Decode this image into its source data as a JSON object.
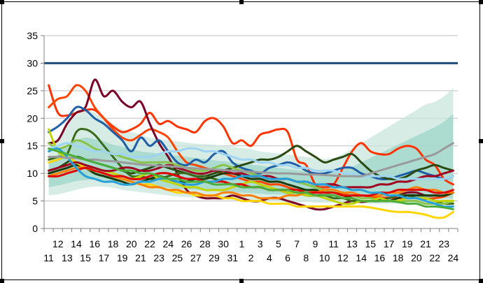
{
  "chart_data": {
    "type": "line",
    "title": "",
    "xlabel": "",
    "ylabel": "",
    "ylim": [
      0,
      35
    ],
    "yticks": [
      0,
      5,
      10,
      15,
      20,
      25,
      30,
      35
    ],
    "x_categories": [
      "11",
      "12",
      "13",
      "14",
      "15",
      "16",
      "17",
      "18",
      "19",
      "20",
      "21",
      "22",
      "23",
      "24",
      "25",
      "26",
      "27",
      "28",
      "29",
      "30",
      "31",
      "1",
      "2",
      "3",
      "4",
      "5",
      "6",
      "7",
      "8",
      "9",
      "10",
      "11",
      "12",
      "13",
      "14",
      "15",
      "16",
      "17",
      "18",
      "19",
      "20",
      "21",
      "22",
      "23",
      "24"
    ],
    "grid": true,
    "legend": "none",
    "reference_line": {
      "value": 30,
      "color": "#1f4e79"
    },
    "bands": [
      {
        "name": "",
        "color": "#c8e6dc",
        "lower": [
          6.0,
          6.2,
          6.6,
          7.0,
          7.4,
          7.6,
          7.6,
          7.4,
          7.0,
          6.8,
          6.6,
          6.4,
          6.2,
          6.0,
          5.8,
          5.7,
          5.6,
          5.5,
          5.4,
          5.3,
          5.2,
          5.1,
          5.0,
          5.0,
          4.9,
          4.9,
          4.8,
          4.8,
          4.8,
          4.7,
          4.7,
          4.7,
          4.6,
          4.6,
          4.6,
          4.5,
          4.5,
          4.5,
          4.5,
          4.5,
          4.5,
          4.4,
          4.4,
          4.4,
          4.4
        ],
        "upper": [
          14.0,
          16.0,
          19.0,
          20.5,
          21.5,
          21.0,
          20.0,
          19.0,
          18.0,
          17.5,
          17.0,
          16.5,
          16.2,
          16.0,
          15.8,
          15.6,
          15.4,
          15.3,
          15.2,
          15.0,
          14.8,
          14.6,
          14.4,
          14.0,
          13.8,
          13.6,
          13.4,
          13.2,
          13.0,
          12.8,
          12.6,
          12.8,
          13.5,
          14.5,
          15.5,
          16.5,
          17.5,
          18.5,
          19.5,
          20.5,
          21.5,
          22.5,
          23.0,
          24.0,
          25.5
        ]
      },
      {
        "name": "",
        "color": "#9ed5c8",
        "lower": [
          7.5,
          7.8,
          8.2,
          8.6,
          8.8,
          8.9,
          8.8,
          8.6,
          8.4,
          8.2,
          8.0,
          7.8,
          7.6,
          7.4,
          7.2,
          7.1,
          7.0,
          6.9,
          6.8,
          6.7,
          6.6,
          6.5,
          6.4,
          6.3,
          6.2,
          6.2,
          6.1,
          6.0,
          6.0,
          5.9,
          5.9,
          5.8,
          5.8,
          5.8,
          5.7,
          5.7,
          5.7,
          5.6,
          5.6,
          5.6,
          5.6,
          5.5,
          5.5,
          5.5,
          5.5
        ],
        "upper": [
          12.0,
          13.5,
          15.0,
          16.0,
          16.5,
          16.2,
          15.8,
          15.2,
          14.8,
          14.4,
          14.0,
          13.8,
          13.6,
          13.4,
          13.2,
          13.0,
          12.8,
          12.6,
          12.4,
          12.2,
          12.0,
          11.8,
          11.6,
          11.4,
          11.2,
          11.0,
          10.8,
          10.6,
          10.4,
          10.2,
          10.0,
          10.2,
          10.6,
          11.2,
          12.0,
          12.8,
          13.6,
          14.4,
          15.2,
          16.0,
          16.8,
          17.6,
          18.4,
          19.4,
          20.8
        ]
      }
    ],
    "series": [
      {
        "color": "#ff3300",
        "values": [
          26.0,
          21.0,
          20.5,
          21.0,
          21.5,
          21.5,
          20.0,
          18.5,
          17.5,
          18.0,
          19.0,
          21.0,
          19.0,
          19.5,
          18.5,
          18.0,
          17.5,
          19.5,
          20.0,
          18.5,
          15.5,
          16.0,
          15.0,
          17.0,
          17.5,
          18.0,
          17.5,
          12.5,
          11.5,
          8.0,
          7.5,
          8.0,
          11.0,
          14.0,
          15.5,
          14.0,
          13.5,
          13.5,
          14.5,
          15.0,
          14.5,
          12.5,
          11.5,
          9.0,
          8.0
        ]
      },
      {
        "color": "#ff4400",
        "values": [
          22.0,
          23.5,
          24.0,
          26.0,
          25.0,
          22.0,
          20.0,
          18.0,
          16.5,
          16.0,
          17.0,
          18.0,
          17.5,
          16.5,
          14.0,
          12.0,
          11.5,
          11.0,
          10.5,
          10.0,
          9.5,
          9.0,
          8.5,
          8.5,
          8.0,
          8.0,
          7.5,
          7.0,
          7.0,
          6.8,
          6.5,
          6.5,
          6.2,
          6.0,
          6.0,
          5.8,
          5.6,
          5.6,
          5.5,
          5.5,
          5.5,
          5.4,
          5.5,
          5.8,
          6.5
        ]
      },
      {
        "color": "#7a0026",
        "values": [
          15.5,
          16.0,
          19.0,
          21.0,
          22.0,
          27.0,
          24.0,
          25.0,
          23.0,
          22.0,
          23.0,
          19.0,
          15.5,
          13.0,
          10.0,
          7.0,
          6.0,
          5.5,
          5.5,
          5.5,
          6.0,
          5.5,
          5.0,
          5.0,
          5.5,
          5.5,
          5.0,
          4.5,
          4.0,
          3.5,
          3.5,
          4.0,
          4.5,
          5.0,
          4.8,
          5.0,
          5.2,
          5.5,
          6.0,
          6.5,
          6.5,
          6.0,
          6.0,
          6.0,
          6.5
        ]
      },
      {
        "color": "#1f5fa8",
        "values": [
          17.5,
          18.5,
          20.0,
          22.0,
          21.5,
          20.0,
          19.0,
          17.5,
          16.0,
          14.0,
          16.5,
          15.0,
          16.0,
          14.0,
          12.0,
          11.5,
          12.5,
          12.0,
          13.5,
          14.0,
          12.0,
          11.0,
          10.5,
          10.0,
          11.0,
          11.5,
          12.0,
          11.5,
          10.5,
          10.0,
          10.0,
          10.5,
          11.0,
          11.0,
          10.0,
          9.5,
          9.0,
          9.0,
          9.5,
          10.0,
          10.5,
          10.0,
          9.5,
          9.0,
          9.5
        ]
      },
      {
        "color": "#2a4a12",
        "values": [
          10.5,
          11.0,
          12.0,
          13.0,
          12.5,
          12.0,
          11.5,
          11.0,
          10.5,
          10.0,
          10.5,
          11.0,
          11.5,
          11.0,
          10.5,
          10.0,
          9.5,
          9.5,
          10.0,
          10.5,
          11.0,
          11.5,
          12.0,
          12.5,
          12.5,
          13.0,
          14.0,
          15.0,
          14.0,
          13.0,
          12.0,
          12.5,
          13.0,
          13.5,
          12.0,
          10.5,
          9.5,
          9.0,
          9.0,
          9.5,
          10.5,
          11.0,
          11.5,
          11.0,
          10.5
        ]
      },
      {
        "color": "#3a6b1a",
        "values": [
          12.5,
          13.0,
          13.5,
          17.5,
          18.0,
          17.0,
          15.0,
          13.0,
          11.0,
          9.5,
          9.5,
          9.0,
          9.0,
          9.5,
          10.0,
          10.0,
          9.5,
          9.5,
          9.0,
          8.5,
          8.0,
          8.0,
          7.5,
          7.5,
          7.0,
          7.0,
          6.5,
          6.5,
          6.0,
          6.0,
          6.0,
          5.5,
          5.5,
          5.0,
          5.0,
          5.0,
          5.0,
          5.5,
          6.0,
          6.0,
          5.5,
          5.5,
          5.0,
          4.5,
          4.5
        ]
      },
      {
        "color": "#1a3a0a",
        "values": [
          10.0,
          10.5,
          11.0,
          11.5,
          11.0,
          10.0,
          9.5,
          9.0,
          8.5,
          8.0,
          8.5,
          9.0,
          9.5,
          9.0,
          8.5,
          8.5,
          9.0,
          9.0,
          9.5,
          10.0,
          10.0,
          9.5,
          9.0,
          9.0,
          8.5,
          8.5,
          8.0,
          7.5,
          7.0,
          7.0,
          6.5,
          6.5,
          6.0,
          5.5,
          5.0,
          5.0,
          5.0,
          5.0,
          5.5,
          6.0,
          6.0,
          6.0,
          6.0,
          6.0,
          6.5
        ]
      },
      {
        "color": "#8bc34a",
        "values": [
          15.5,
          14.5,
          15.0,
          16.0,
          15.5,
          14.5,
          14.0,
          13.5,
          13.0,
          12.5,
          12.0,
          12.0,
          12.0,
          12.0,
          11.5,
          11.0,
          10.5,
          10.5,
          11.0,
          11.5,
          11.0,
          10.5,
          10.0,
          9.5,
          9.5,
          9.0,
          9.0,
          8.5,
          8.0,
          7.5,
          7.0,
          6.5,
          6.0,
          6.0,
          5.5,
          5.5,
          5.0,
          5.0,
          5.0,
          5.0,
          5.0,
          4.5,
          4.5,
          4.5,
          5.0
        ]
      },
      {
        "color": "#c0d400",
        "values": [
          18.0,
          14.0,
          13.0,
          12.0,
          11.5,
          11.0,
          10.5,
          10.0,
          9.5,
          9.0,
          9.5,
          10.0,
          9.0,
          8.5,
          8.0,
          7.5,
          7.5,
          7.0,
          7.0,
          7.0,
          7.5,
          8.0,
          8.5,
          8.0,
          7.5,
          7.0,
          6.5,
          6.5,
          6.0,
          6.0,
          5.5,
          5.0,
          4.5,
          4.5,
          5.0,
          5.0,
          5.5,
          5.0,
          5.0,
          5.5,
          5.5,
          5.5,
          5.0,
          5.0,
          5.0
        ]
      },
      {
        "color": "#ffd500",
        "values": [
          12.0,
          12.5,
          13.0,
          12.0,
          11.0,
          10.5,
          10.0,
          9.5,
          9.0,
          8.5,
          8.0,
          8.0,
          7.5,
          7.0,
          6.5,
          6.5,
          6.0,
          6.0,
          6.0,
          5.5,
          5.5,
          5.0,
          5.0,
          5.0,
          4.5,
          4.5,
          4.5,
          4.0,
          4.0,
          4.0,
          4.0,
          4.0,
          4.0,
          4.0,
          4.0,
          3.8,
          3.5,
          3.2,
          3.0,
          3.0,
          2.8,
          2.5,
          2.0,
          2.0,
          3.0
        ]
      },
      {
        "color": "#ff7f00",
        "values": [
          9.5,
          10.0,
          10.5,
          11.0,
          11.0,
          10.5,
          10.0,
          9.5,
          9.0,
          8.5,
          8.0,
          7.5,
          7.5,
          7.0,
          7.0,
          6.5,
          6.5,
          6.0,
          6.0,
          6.5,
          6.5,
          6.0,
          6.0,
          5.5,
          5.5,
          5.5,
          6.0,
          6.0,
          6.5,
          6.5,
          7.0,
          7.0,
          6.5,
          6.5,
          6.0,
          6.0,
          6.0,
          6.5,
          6.5,
          7.0,
          7.5,
          7.0,
          7.0,
          6.5,
          6.5
        ]
      },
      {
        "color": "#e00000",
        "values": [
          9.5,
          9.5,
          10.0,
          10.5,
          11.0,
          10.5,
          10.0,
          9.5,
          9.5,
          9.0,
          9.0,
          9.5,
          10.0,
          10.0,
          9.5,
          9.0,
          9.0,
          8.5,
          8.5,
          8.5,
          8.0,
          8.0,
          7.5,
          7.5,
          7.0,
          7.0,
          7.0,
          7.0,
          6.5,
          6.5,
          6.5,
          6.5,
          6.0,
          6.0,
          6.0,
          6.0,
          6.5,
          6.5,
          7.0,
          7.0,
          7.0,
          7.0,
          6.5,
          6.5,
          7.0
        ]
      },
      {
        "color": "#a00020",
        "values": [
          10.5,
          11.0,
          11.5,
          12.0,
          11.5,
          11.0,
          10.5,
          10.5,
          11.0,
          11.0,
          10.5,
          10.5,
          11.0,
          11.5,
          11.0,
          10.5,
          10.0,
          10.0,
          10.5,
          10.5,
          10.0,
          10.0,
          9.5,
          9.5,
          9.5,
          9.0,
          9.0,
          8.5,
          8.5,
          8.0,
          8.0,
          8.0,
          7.5,
          7.5,
          7.5,
          7.5,
          8.0,
          8.0,
          8.5,
          8.5,
          9.0,
          9.5,
          9.5,
          10.0,
          10.5
        ]
      },
      {
        "color": "#26a0da",
        "values": [
          14.0,
          14.5,
          13.0,
          11.0,
          9.5,
          9.0,
          8.5,
          8.5,
          8.0,
          8.0,
          8.5,
          8.5,
          9.0,
          9.0,
          8.5,
          8.0,
          8.0,
          8.5,
          8.5,
          9.0,
          9.0,
          9.5,
          9.5,
          9.5,
          9.0,
          9.0,
          9.0,
          8.5,
          8.5,
          8.0,
          8.0,
          7.5,
          7.5,
          7.0,
          7.0,
          6.5,
          6.5,
          6.0,
          6.0,
          5.5,
          5.5,
          5.0,
          4.5,
          4.0,
          4.0
        ]
      },
      {
        "color": "#9fd4f2",
        "values": [
          14.5,
          15.0,
          15.5,
          15.0,
          14.5,
          14.0,
          14.0,
          13.5,
          13.5,
          13.0,
          13.0,
          13.0,
          13.5,
          14.0,
          14.0,
          14.5,
          14.5,
          14.0,
          14.0,
          13.5,
          13.0,
          12.5,
          12.5,
          12.0,
          12.0,
          11.5,
          11.5,
          11.0,
          11.0,
          10.5,
          10.5,
          10.5,
          10.0,
          10.0,
          9.5,
          9.5,
          9.5,
          9.5,
          9.0,
          9.0,
          9.0,
          9.0,
          9.0,
          9.0,
          9.5
        ]
      },
      {
        "color": "#9a9a9a",
        "values": [
          13.0,
          13.0,
          12.8,
          12.8,
          12.5,
          12.5,
          12.3,
          12.2,
          12.0,
          11.8,
          11.6,
          11.5,
          11.4,
          11.3,
          11.2,
          11.0,
          10.9,
          10.8,
          10.7,
          10.6,
          10.5,
          10.4,
          10.3,
          10.2,
          10.1,
          10.0,
          10.0,
          9.9,
          9.8,
          9.8,
          9.7,
          9.6,
          9.5,
          9.5,
          9.5,
          10.0,
          10.5,
          11.0,
          11.5,
          12.0,
          12.5,
          13.0,
          13.5,
          14.5,
          15.5
        ]
      },
      {
        "color": "#4cae3a",
        "values": [
          14.5,
          14.0,
          13.5,
          13.0,
          12.5,
          12.0,
          11.5,
          11.0,
          10.5,
          10.5,
          10.0,
          10.0,
          9.5,
          9.0,
          9.0,
          8.5,
          8.5,
          8.5,
          8.0,
          8.0,
          8.0,
          7.5,
          7.5,
          7.5,
          7.0,
          7.0,
          7.0,
          6.5,
          6.5,
          6.0,
          6.0,
          6.0,
          5.5,
          5.5,
          5.0,
          5.0,
          5.0,
          5.0,
          4.8,
          4.5,
          4.5,
          4.0,
          4.0,
          3.8,
          3.5
        ]
      }
    ]
  }
}
